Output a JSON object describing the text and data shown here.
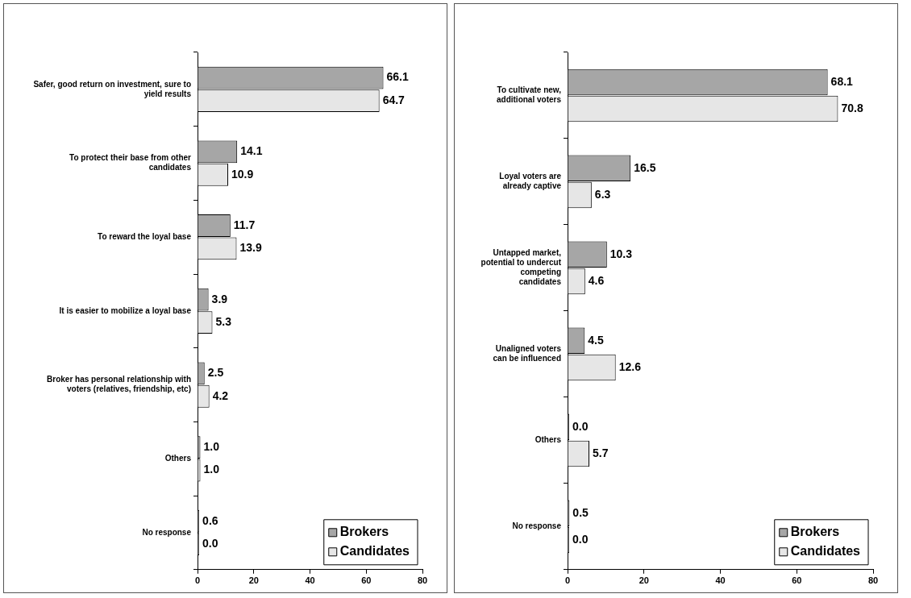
{
  "chart_data": [
    {
      "type": "bar",
      "orientation": "horizontal",
      "categories": [
        "Safer, good return on investment, sure to yield results",
        "To protect their base from other candidates",
        "To reward the loyal base",
        "It is easier to mobilize a loyal base",
        "Broker has personal relationship with voters (relatives, friendship, etc)",
        "Others",
        "No response"
      ],
      "series": [
        {
          "name": "Brokers",
          "color": "#a6a6a6",
          "values": [
            66.1,
            14.1,
            11.7,
            3.9,
            2.5,
            1.0,
            0.6
          ],
          "value_labels": [
            "66.1",
            "14.1",
            "11.7",
            "3.9",
            "2.5",
            "1.0",
            "0.6"
          ]
        },
        {
          "name": "Candidates",
          "color": "#e6e6e6",
          "values": [
            64.7,
            10.9,
            13.9,
            5.3,
            4.2,
            1.0,
            0.0
          ],
          "value_labels": [
            "64.7",
            "10.9",
            "13.9",
            "5.3",
            "4.2",
            "1.0",
            "0.0"
          ]
        }
      ],
      "xlim": [
        0,
        80
      ],
      "xticks": [
        0,
        20,
        40,
        60,
        80
      ],
      "legend": "bottom right"
    },
    {
      "type": "bar",
      "orientation": "horizontal",
      "categories": [
        "To cultivate new, additional voters",
        "Loyal voters are already captive",
        "Untapped market, potential to undercut competing candidates",
        "Unaligned voters can be influenced",
        "Others",
        "No response"
      ],
      "series": [
        {
          "name": "Brokers",
          "color": "#a6a6a6",
          "values": [
            68.1,
            16.5,
            10.3,
            4.5,
            0.0,
            0.5
          ],
          "value_labels": [
            "68.1",
            "16.5",
            "10.3",
            "4.5",
            "0.0",
            "0.5"
          ]
        },
        {
          "name": "Candidates",
          "color": "#e6e6e6",
          "values": [
            70.8,
            6.3,
            4.6,
            12.6,
            5.7,
            0.0
          ],
          "value_labels": [
            "70.8",
            "6.3",
            "4.6",
            "12.6",
            "5.7",
            "0.0"
          ]
        }
      ],
      "xlim": [
        0,
        80
      ],
      "xticks": [
        0,
        20,
        40,
        60,
        80
      ],
      "legend": "bottom right"
    }
  ]
}
